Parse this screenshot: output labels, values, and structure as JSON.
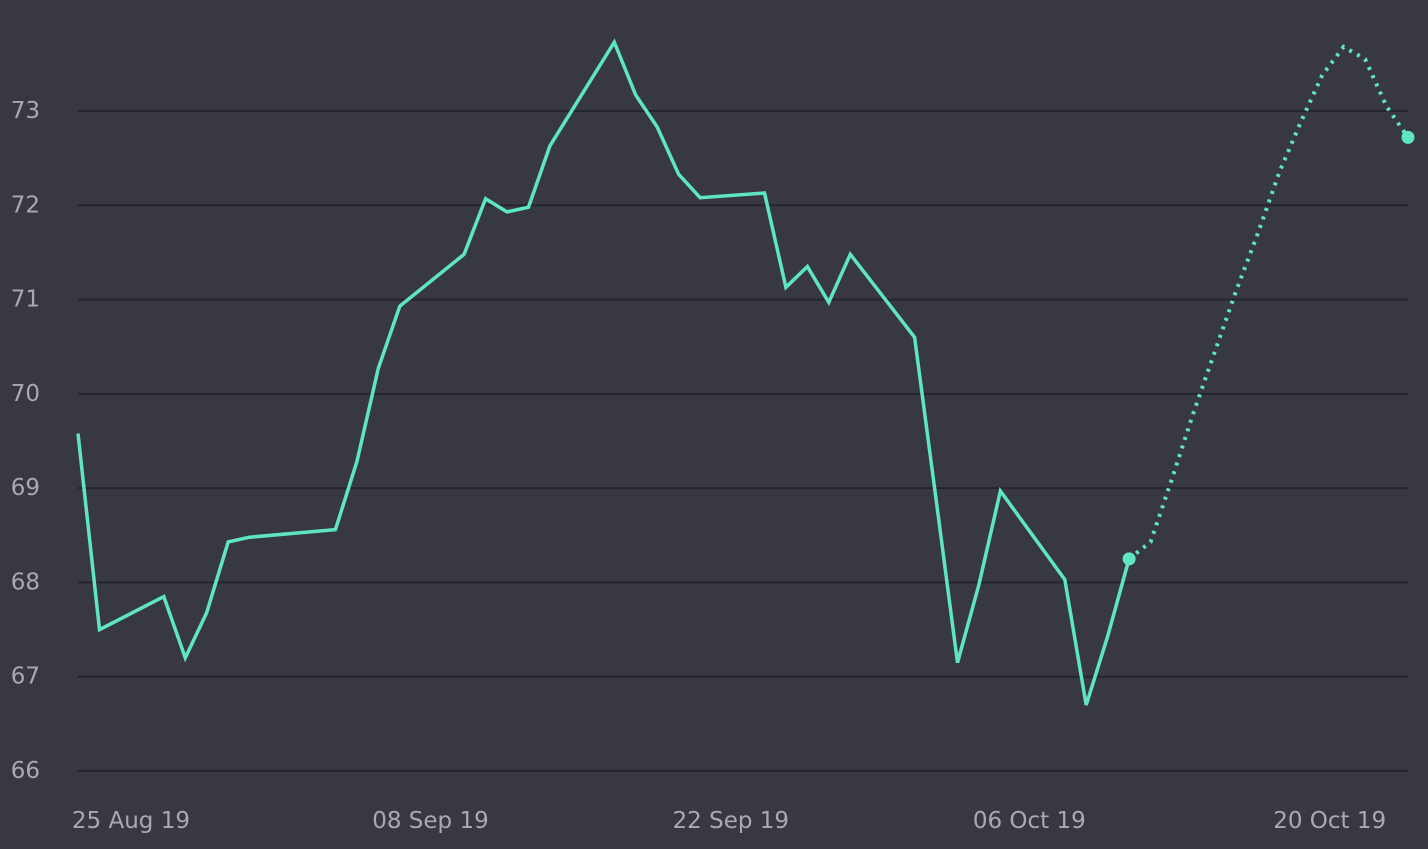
{
  "chart_data": {
    "type": "line",
    "title": "",
    "xlabel": "",
    "ylabel": "",
    "colors": {
      "background": "#383843",
      "line": "#5ee6c0",
      "grid": "#25252d",
      "tick_text": "#a9a9b3"
    },
    "grid": true,
    "legend": "none",
    "ylim": [
      65.9,
      73.75
    ],
    "xlim": [
      "2019-08-23",
      "2019-10-24"
    ],
    "yticks": [
      {
        "value": 73,
        "label": "73"
      },
      {
        "value": 72,
        "label": "72"
      },
      {
        "value": 71,
        "label": "71"
      },
      {
        "value": 70,
        "label": "70"
      },
      {
        "value": 69,
        "label": "69"
      },
      {
        "value": 68,
        "label": "68"
      },
      {
        "value": 67,
        "label": "67"
      },
      {
        "value": 66,
        "label": "66"
      }
    ],
    "xticks": [
      {
        "date": "2019-08-25",
        "label": "25 Aug 19"
      },
      {
        "date": "2019-09-08",
        "label": "08 Sep 19"
      },
      {
        "date": "2019-09-22",
        "label": "22 Sep 19"
      },
      {
        "date": "2019-10-06",
        "label": "06 Oct 19"
      },
      {
        "date": "2019-10-20",
        "label": "20 Oct 19"
      }
    ],
    "series": [
      {
        "style": "solid",
        "endpoint_marker": "end",
        "points": [
          {
            "x": "2019-08-23",
            "y": 69.58
          },
          {
            "x": "2019-08-24",
            "y": 67.5
          },
          {
            "x": "2019-08-27",
            "y": 67.85
          },
          {
            "x": "2019-08-28",
            "y": 67.2
          },
          {
            "x": "2019-08-29",
            "y": 67.68
          },
          {
            "x": "2019-08-30",
            "y": 68.43
          },
          {
            "x": "2019-08-31",
            "y": 68.48
          },
          {
            "x": "2019-09-04",
            "y": 68.56
          },
          {
            "x": "2019-09-05",
            "y": 69.28
          },
          {
            "x": "2019-09-06",
            "y": 70.27
          },
          {
            "x": "2019-09-07",
            "y": 70.93
          },
          {
            "x": "2019-09-10",
            "y": 71.48
          },
          {
            "x": "2019-09-11",
            "y": 72.07
          },
          {
            "x": "2019-09-12",
            "y": 71.93
          },
          {
            "x": "2019-09-13",
            "y": 71.98
          },
          {
            "x": "2019-09-14",
            "y": 72.63
          },
          {
            "x": "2019-09-17",
            "y": 73.73
          },
          {
            "x": "2019-09-18",
            "y": 73.17
          },
          {
            "x": "2019-09-19",
            "y": 72.83
          },
          {
            "x": "2019-09-20",
            "y": 72.33
          },
          {
            "x": "2019-09-21",
            "y": 72.08
          },
          {
            "x": "2019-09-24",
            "y": 72.13
          },
          {
            "x": "2019-09-25",
            "y": 71.13
          },
          {
            "x": "2019-09-26",
            "y": 71.35
          },
          {
            "x": "2019-09-27",
            "y": 70.97
          },
          {
            "x": "2019-09-28",
            "y": 71.48
          },
          {
            "x": "2019-10-01",
            "y": 70.6
          },
          {
            "x": "2019-10-02",
            "y": 68.88
          },
          {
            "x": "2019-10-03",
            "y": 67.15
          },
          {
            "x": "2019-10-04",
            "y": 67.98
          },
          {
            "x": "2019-10-05",
            "y": 68.97
          },
          {
            "x": "2019-10-08",
            "y": 68.03
          },
          {
            "x": "2019-10-09",
            "y": 66.7
          },
          {
            "x": "2019-10-10",
            "y": 67.43
          },
          {
            "x": "2019-10-11",
            "y": 68.25
          }
        ]
      },
      {
        "style": "dotted",
        "endpoint_marker": "end",
        "points": [
          {
            "x": "2019-10-11",
            "y": 68.25
          },
          {
            "x": "2019-10-12",
            "y": 68.43
          },
          {
            "x": "2019-10-13",
            "y": 69.1
          },
          {
            "x": "2019-10-14",
            "y": 69.8
          },
          {
            "x": "2019-10-15",
            "y": 70.45
          },
          {
            "x": "2019-10-16",
            "y": 71.1
          },
          {
            "x": "2019-10-17",
            "y": 71.7
          },
          {
            "x": "2019-10-18",
            "y": 72.35
          },
          {
            "x": "2019-10-19",
            "y": 72.88
          },
          {
            "x": "2019-10-20",
            "y": 73.38
          },
          {
            "x": "2019-10-21",
            "y": 73.68
          },
          {
            "x": "2019-10-22",
            "y": 73.55
          },
          {
            "x": "2019-10-23",
            "y": 73.05
          },
          {
            "x": "2019-10-24",
            "y": 72.72
          }
        ]
      }
    ]
  }
}
